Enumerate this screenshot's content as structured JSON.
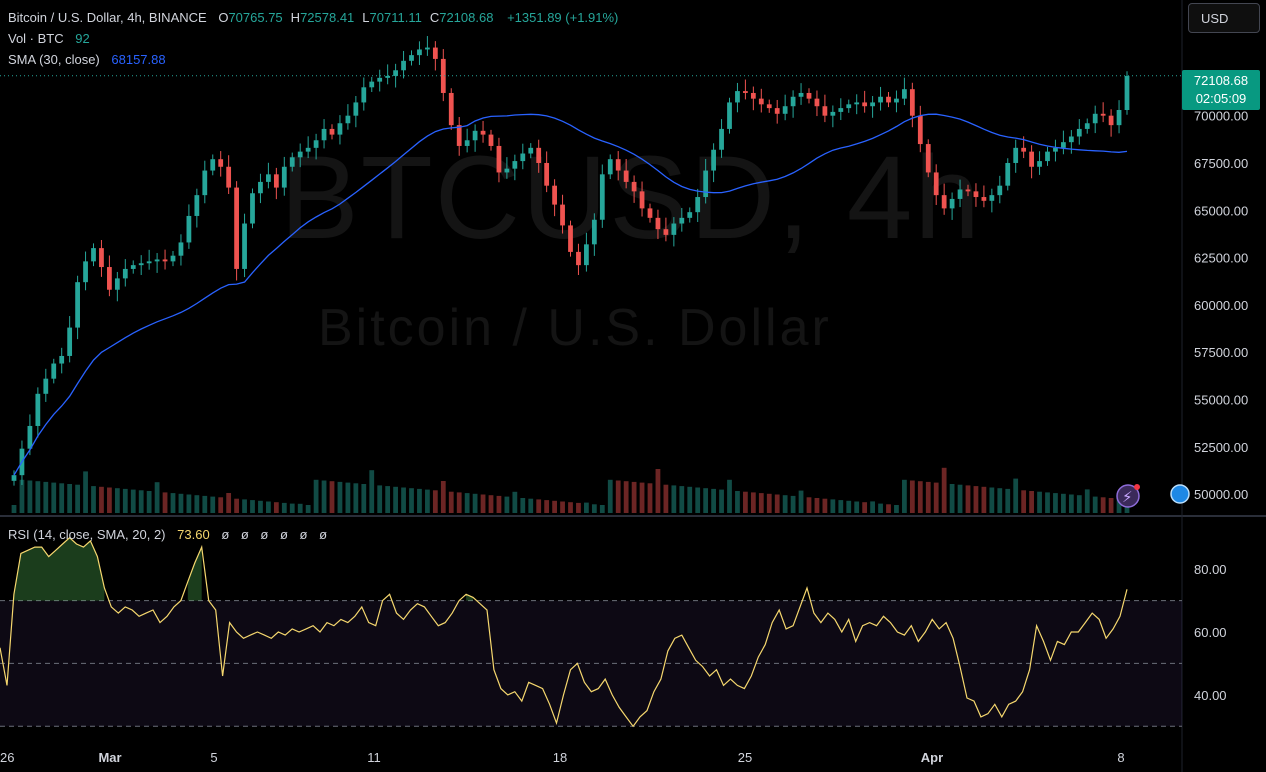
{
  "header": {
    "symbol_line": "Bitcoin / U.S. Dollar, 4h, BINANCE",
    "ohlc": [
      {
        "k": "O",
        "v": "70765.75"
      },
      {
        "k": "H",
        "v": "72578.41"
      },
      {
        "k": "L",
        "v": "70711.11"
      },
      {
        "k": "C",
        "v": "72108.68"
      }
    ],
    "change": "+1351.89 (+1.91%)",
    "vol_label": "Vol · BTC",
    "vol_value": "92",
    "sma_label": "SMA (30, close)",
    "sma_value": "68157.88",
    "rsi_label": "RSI (14, close, SMA, 20, 2)",
    "rsi_value": "73.60",
    "rsi_extra": "ø ø ø ø ø ø"
  },
  "currency_button": "USD",
  "price_tag": {
    "price": "72108.68",
    "countdown": "02:05:09"
  },
  "watermark": {
    "symbol": "BTCUSD, 4h",
    "name": "Bitcoin / U.S. Dollar"
  },
  "colors": {
    "up": "#26a69a",
    "down": "#ef5350",
    "sma": "#2962ff",
    "rsi": "#f5d76e",
    "accent": "#089981"
  },
  "chart_data": [
    {
      "type": "candlestick",
      "price_axis_ticks": [
        "50000.00",
        "52500.00",
        "55000.00",
        "57500.00",
        "60000.00",
        "62500.00",
        "65000.00",
        "67500.00",
        "70000.00"
      ],
      "x_axis_ticks": [
        "26",
        "Mar",
        "5",
        "11",
        "18",
        "25",
        "Apr",
        "8"
      ],
      "ylim": [
        49000,
        74000
      ],
      "last_price": 72108.68,
      "series_close": [
        51000,
        52400,
        53600,
        55300,
        56100,
        56900,
        57300,
        58800,
        61200,
        62300,
        63000,
        62000,
        60800,
        61400,
        61900,
        62100,
        62200,
        62300,
        62400,
        62300,
        62600,
        63300,
        64700,
        65800,
        67100,
        67700,
        67300,
        66200,
        61900,
        64300,
        65900,
        66500,
        66900,
        66200,
        67300,
        67800,
        68100,
        68300,
        68700,
        69300,
        69000,
        69600,
        70000,
        70700,
        71500,
        71800,
        72000,
        72100,
        72400,
        72900,
        73200,
        73500,
        73600,
        73000,
        71200,
        69500,
        68400,
        68700,
        69200,
        69000,
        68400,
        67000,
        67200,
        67600,
        68000,
        68300,
        67500,
        66300,
        65300,
        64200,
        62800,
        62100,
        63200,
        64500,
        66900,
        67700,
        67100,
        66500,
        66000,
        65100,
        64600,
        64000,
        63700,
        64300,
        64600,
        64900,
        65700,
        67100,
        68200,
        69300,
        70700,
        71300,
        71200,
        70900,
        70600,
        70400,
        70100,
        70500,
        71000,
        71200,
        70900,
        70500,
        70000,
        70200,
        70400,
        70600,
        70700,
        70500,
        70700,
        71000,
        70700,
        70900,
        71400,
        70000,
        68500,
        67000,
        65800,
        65100,
        65600,
        66100,
        66000,
        65700,
        65500,
        65800,
        66300,
        67500,
        68300,
        68100,
        67300,
        67600,
        68100,
        68300,
        68600,
        68900,
        69300,
        69600,
        70100,
        70000,
        69500,
        70300,
        72100
      ]
    },
    {
      "type": "line",
      "name": "RSI",
      "y_axis_ticks": [
        "40.00",
        "60.00",
        "80.00"
      ],
      "ylim": [
        25,
        95
      ],
      "bands": [
        30,
        50,
        70
      ],
      "values": [
        55,
        43,
        72,
        85,
        86,
        87,
        87,
        84,
        86,
        88,
        90,
        88,
        87,
        89,
        84,
        74,
        68,
        66,
        68,
        67,
        65,
        66,
        67,
        63,
        65,
        68,
        70,
        76,
        82,
        87,
        70,
        67,
        46,
        63,
        60,
        58,
        59,
        60,
        59,
        58,
        60,
        59,
        61,
        60,
        61,
        62,
        60,
        63,
        62,
        64,
        63,
        65,
        68,
        63,
        62,
        70,
        72,
        66,
        64,
        67,
        69,
        68,
        65,
        62,
        63,
        66,
        70,
        72,
        71,
        69,
        67,
        48,
        42,
        40,
        41,
        38,
        44,
        43,
        42,
        37,
        31,
        40,
        48,
        50,
        44,
        41,
        42,
        45,
        40,
        36,
        33,
        30,
        33,
        35,
        41,
        45,
        54,
        58,
        59,
        55,
        51,
        49,
        46,
        48,
        43,
        45,
        43,
        42,
        46,
        52,
        56,
        63,
        67,
        61,
        62,
        68,
        74,
        66,
        63,
        66,
        64,
        60,
        64,
        57,
        62,
        63,
        62,
        65,
        63,
        60,
        59,
        62,
        57,
        60,
        64,
        61,
        63,
        58,
        49,
        39,
        38,
        33,
        34,
        37,
        33,
        37,
        38,
        41,
        48,
        62,
        57,
        51,
        57,
        56,
        60,
        60,
        63,
        66,
        64,
        58,
        61,
        65,
        73.6
      ]
    }
  ]
}
